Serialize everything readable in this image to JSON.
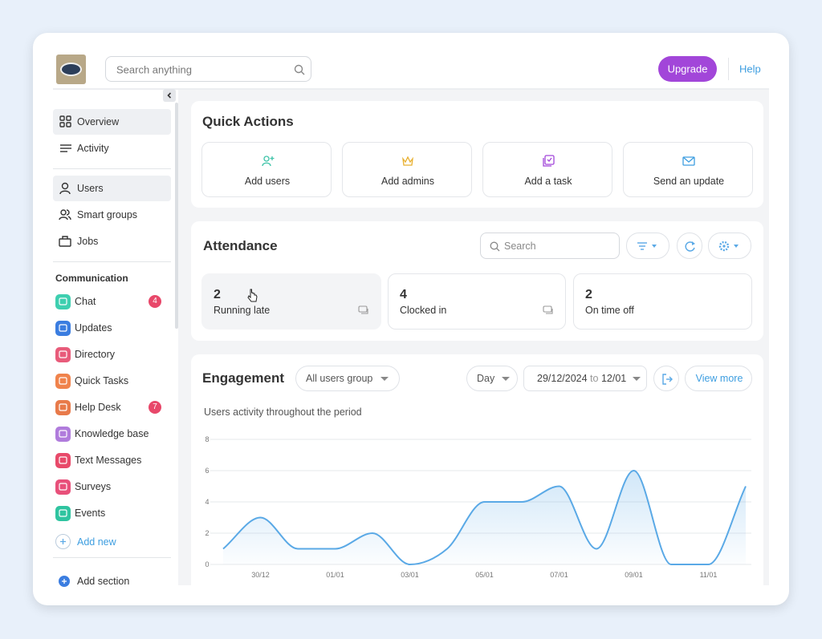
{
  "header": {
    "search_placeholder": "Search anything",
    "upgrade": "Upgrade",
    "help": "Help"
  },
  "sidebar": {
    "top": [
      "Overview",
      "Activity"
    ],
    "people": [
      "Users",
      "Smart groups",
      "Jobs"
    ],
    "section_title": "Communication",
    "apps": [
      {
        "label": "Chat",
        "badge": 4,
        "color": "#3ecfb0"
      },
      {
        "label": "Updates",
        "color": "#3b7de0"
      },
      {
        "label": "Directory",
        "color": "#e85b7a"
      },
      {
        "label": "Quick Tasks",
        "color": "#f0834c"
      },
      {
        "label": "Help Desk",
        "badge": 7,
        "color": "#e87a4a"
      },
      {
        "label": "Knowledge base",
        "color": "#b07cdc"
      },
      {
        "label": "Text Messages",
        "color": "#e84a6a"
      },
      {
        "label": "Surveys",
        "color": "#e8507a"
      },
      {
        "label": "Events",
        "color": "#2fc4a0"
      }
    ],
    "add_new": "Add new",
    "add_section": "Add section"
  },
  "quick_actions": {
    "title": "Quick Actions",
    "items": [
      "Add users",
      "Add admins",
      "Add a task",
      "Send an update"
    ]
  },
  "attendance": {
    "title": "Attendance",
    "search_placeholder": "Search",
    "stats": [
      {
        "value": 2,
        "label": "Running late"
      },
      {
        "value": 4,
        "label": "Clocked in"
      },
      {
        "value": 2,
        "label": "On time off"
      }
    ]
  },
  "engagement": {
    "title": "Engagement",
    "group_filter": "All users group",
    "period": "Day",
    "date_from": "29/12/2024",
    "date_to_word": "to",
    "date_to": "12/01",
    "view_more": "View more",
    "chart": {
      "type": "line",
      "subtitle": "Users activity throughout the period",
      "categories": [
        null,
        "30/12",
        null,
        "01/01",
        null,
        "03/01",
        null,
        "05/01",
        null,
        "07/01",
        null,
        "09/01",
        null,
        "11/01",
        null
      ],
      "values": [
        1,
        3,
        1,
        1,
        2,
        0,
        1,
        4,
        4,
        5,
        1,
        6,
        0,
        0,
        5
      ],
      "color": "#5aa9e6",
      "ylim": [
        0,
        8
      ],
      "yticks": [
        0,
        2,
        4,
        6,
        8
      ],
      "grid": true
    }
  }
}
